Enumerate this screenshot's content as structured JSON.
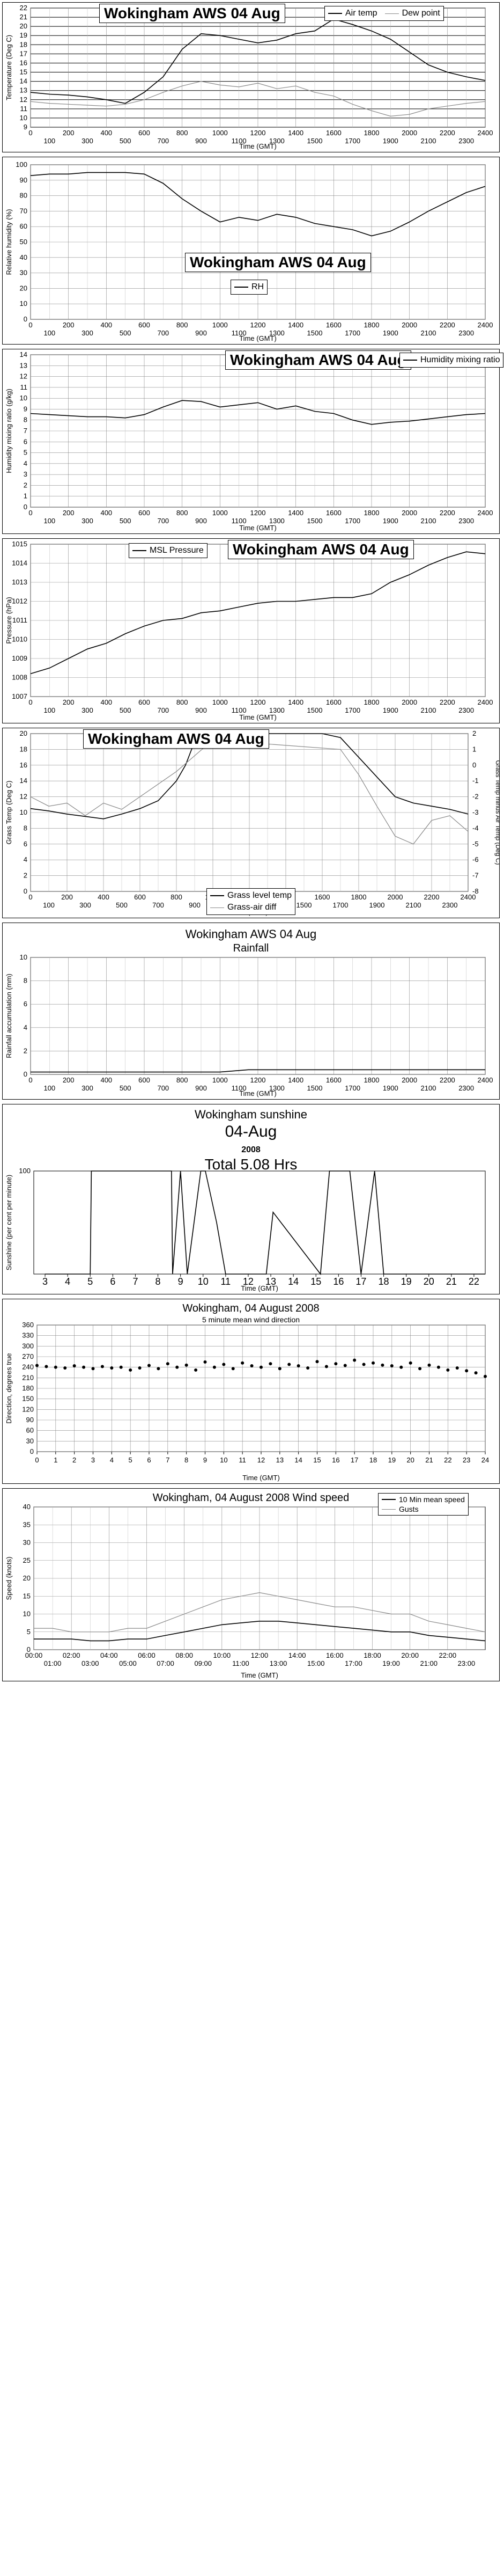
{
  "chart_data": [
    {
      "id": "temp",
      "type": "line",
      "title": "Wokingham AWS 04 Aug",
      "xlabel": "Time (GMT)",
      "ylabel": "Temperature (Deg C)",
      "xlim": [
        0,
        2400
      ],
      "ylim": [
        9,
        22
      ],
      "xticks_top": [
        0,
        200,
        400,
        600,
        800,
        1000,
        1200,
        1400,
        1600,
        1800,
        2000,
        2200,
        2400
      ],
      "xticks_bottom": [
        100,
        300,
        500,
        700,
        900,
        1100,
        1300,
        1500,
        1700,
        1900,
        2100,
        2300
      ],
      "yticks": [
        9,
        10,
        11,
        12,
        13,
        14,
        15,
        16,
        17,
        18,
        19,
        20,
        21,
        22
      ],
      "grid": true,
      "legend_position": "top-right",
      "series": [
        {
          "name": "Air temp",
          "x": [
            0,
            100,
            200,
            300,
            400,
            500,
            600,
            700,
            800,
            900,
            1000,
            1100,
            1200,
            1300,
            1400,
            1500,
            1600,
            1700,
            1800,
            1900,
            2000,
            2100,
            2200,
            2300,
            2400
          ],
          "values": [
            12.8,
            12.6,
            12.5,
            12.3,
            12.0,
            11.6,
            12.8,
            14.5,
            17.5,
            19.2,
            19.0,
            18.6,
            18.2,
            18.5,
            19.2,
            19.5,
            20.8,
            20.2,
            19.5,
            18.6,
            17.2,
            15.8,
            15.0,
            14.5,
            14.1
          ]
        },
        {
          "name": "Dew point",
          "x": [
            0,
            100,
            200,
            300,
            400,
            500,
            600,
            700,
            800,
            900,
            1000,
            1100,
            1200,
            1300,
            1400,
            1500,
            1600,
            1700,
            1800,
            1900,
            2000,
            2100,
            2200,
            2300,
            2400
          ],
          "values": [
            11.8,
            11.6,
            11.5,
            11.4,
            11.3,
            11.5,
            12.0,
            12.8,
            13.5,
            14.0,
            13.6,
            13.4,
            13.8,
            13.2,
            13.5,
            12.8,
            12.4,
            11.5,
            10.8,
            10.2,
            10.4,
            11.0,
            11.3,
            11.6,
            11.8
          ]
        }
      ]
    },
    {
      "id": "rh",
      "type": "line",
      "title": "Wokingham AWS 04 Aug",
      "xlabel": "Time (GMT)",
      "ylabel": "Relative humidity (%)",
      "xlim": [
        0,
        2400
      ],
      "ylim": [
        0,
        100
      ],
      "xticks_top": [
        0,
        200,
        400,
        600,
        800,
        1000,
        1200,
        1400,
        1600,
        1800,
        2000,
        2200,
        2400
      ],
      "xticks_bottom": [
        100,
        300,
        500,
        700,
        900,
        1100,
        1300,
        1500,
        1700,
        1900,
        2100,
        2300
      ],
      "yticks": [
        0,
        10,
        20,
        30,
        40,
        50,
        60,
        70,
        80,
        90,
        100
      ],
      "grid": true,
      "legend_position": "center",
      "series": [
        {
          "name": "RH",
          "x": [
            0,
            100,
            200,
            300,
            400,
            500,
            600,
            700,
            800,
            900,
            1000,
            1100,
            1200,
            1300,
            1400,
            1500,
            1600,
            1700,
            1800,
            1900,
            2000,
            2100,
            2200,
            2300,
            2400
          ],
          "values": [
            93,
            94,
            94,
            95,
            95,
            95,
            94,
            88,
            78,
            70,
            63,
            66,
            64,
            68,
            66,
            62,
            60,
            58,
            54,
            57,
            63,
            70,
            76,
            82,
            86
          ]
        }
      ]
    },
    {
      "id": "hmr",
      "type": "line",
      "title": "Wokingham AWS 04 Aug",
      "xlabel": "Time (GMT)",
      "ylabel": "Humidity mixing ratio (g/kg)",
      "xlim": [
        0,
        2400
      ],
      "ylim": [
        0,
        14
      ],
      "xticks_top": [
        0,
        200,
        400,
        600,
        800,
        1000,
        1200,
        1400,
        1600,
        1800,
        2000,
        2200,
        2400
      ],
      "xticks_bottom": [
        100,
        300,
        500,
        700,
        900,
        1100,
        1300,
        1500,
        1700,
        1900,
        2100,
        2300
      ],
      "yticks": [
        0,
        1,
        2,
        3,
        4,
        5,
        6,
        7,
        8,
        9,
        10,
        11,
        12,
        13,
        14
      ],
      "grid": true,
      "legend_position": "top-right",
      "series": [
        {
          "name": "Humidity mixing ratio",
          "x": [
            0,
            100,
            200,
            300,
            400,
            500,
            600,
            700,
            800,
            900,
            1000,
            1100,
            1200,
            1300,
            1400,
            1500,
            1600,
            1700,
            1800,
            1900,
            2000,
            2100,
            2200,
            2300,
            2400
          ],
          "values": [
            8.6,
            8.5,
            8.4,
            8.3,
            8.3,
            8.2,
            8.5,
            9.2,
            9.8,
            9.7,
            9.2,
            9.4,
            9.6,
            9.0,
            9.3,
            8.8,
            8.6,
            8.0,
            7.6,
            7.8,
            7.9,
            8.1,
            8.3,
            8.5,
            8.6
          ]
        }
      ]
    },
    {
      "id": "pressure",
      "type": "line",
      "title": "Wokingham AWS 04 Aug",
      "xlabel": "Time (GMT)",
      "ylabel": "Pressure (hPa)",
      "xlim": [
        0,
        2400
      ],
      "ylim": [
        1007,
        1015
      ],
      "xticks_top": [
        0,
        200,
        400,
        600,
        800,
        1000,
        1200,
        1400,
        1600,
        1800,
        2000,
        2200,
        2400
      ],
      "xticks_bottom": [
        100,
        300,
        500,
        700,
        900,
        1100,
        1300,
        1500,
        1700,
        1900,
        2100,
        2300
      ],
      "yticks": [
        1007,
        1008,
        1009,
        1010,
        1011,
        1012,
        1013,
        1014,
        1015
      ],
      "grid": true,
      "legend_position": "top-left",
      "series": [
        {
          "name": "MSL Pressure",
          "x": [
            0,
            100,
            200,
            300,
            400,
            500,
            600,
            700,
            800,
            900,
            1000,
            1100,
            1200,
            1300,
            1400,
            1500,
            1600,
            1700,
            1800,
            1900,
            2000,
            2100,
            2200,
            2300,
            2400
          ],
          "values": [
            1008.2,
            1008.5,
            1009.0,
            1009.5,
            1009.8,
            1010.3,
            1010.7,
            1011.0,
            1011.1,
            1011.4,
            1011.5,
            1011.7,
            1011.9,
            1012.0,
            1012.0,
            1012.1,
            1012.2,
            1012.2,
            1012.4,
            1013.0,
            1013.4,
            1013.9,
            1014.3,
            1014.6,
            1014.5
          ]
        }
      ]
    },
    {
      "id": "grass",
      "type": "line",
      "title": "Wokingham AWS 04 Aug",
      "xlabel": "Time (GMT)",
      "ylabel": "Grass Temp (Deg C)",
      "ylabel_right": "Grass Temp minus Air Temp (Deg C)",
      "xlim": [
        0,
        2400
      ],
      "ylim": [
        0,
        20
      ],
      "ylim_right": [
        -8,
        2
      ],
      "xticks_top": [
        0,
        200,
        400,
        600,
        800,
        1000,
        1200,
        1400,
        1600,
        1800,
        2000,
        2200,
        2400
      ],
      "xticks_bottom": [
        100,
        300,
        500,
        700,
        900,
        1100,
        1300,
        1500,
        1700,
        1900,
        2100,
        2300
      ],
      "yticks": [
        0,
        2,
        4,
        6,
        8,
        10,
        12,
        14,
        16,
        18,
        20
      ],
      "yticks_right": [
        -8,
        -7,
        -6,
        -5,
        -4,
        -3,
        -2,
        -1,
        0,
        1,
        2
      ],
      "grid": true,
      "legend_position": "bottom-right",
      "series": [
        {
          "name": "Grass level temp",
          "x": [
            0,
            100,
            200,
            300,
            400,
            500,
            600,
            700,
            800,
            850,
            900,
            1000,
            1200,
            1400,
            1600,
            1700,
            1800,
            1900,
            2000,
            2100,
            2200,
            2300,
            2400
          ],
          "values": [
            10.5,
            10.2,
            9.8,
            9.5,
            9.2,
            9.8,
            10.5,
            11.5,
            14.0,
            16.0,
            19.0,
            20,
            20,
            20,
            20,
            19.5,
            17.0,
            14.5,
            12.0,
            11.2,
            10.8,
            10.4,
            9.8
          ]
        },
        {
          "name": "Grass-air diff",
          "axis": "right",
          "x": [
            0,
            100,
            200,
            300,
            400,
            500,
            600,
            700,
            800,
            900,
            1000,
            1700,
            1800,
            1900,
            2000,
            2100,
            2200,
            2300,
            2400
          ],
          "values": [
            -2.0,
            -2.6,
            -2.4,
            -3.2,
            -2.4,
            -2.8,
            -2.0,
            -1.2,
            -0.4,
            0.6,
            1.6,
            1.0,
            -0.6,
            -2.6,
            -4.5,
            -5.0,
            -3.5,
            -3.2,
            -4.2
          ]
        }
      ]
    },
    {
      "id": "rain",
      "type": "line",
      "title": "Wokingham AWS 04 Aug",
      "subtitle": "Rainfall",
      "xlabel": "Time (GMT)",
      "ylabel": "Rainfall accumulation (mm)",
      "xlim": [
        0,
        2400
      ],
      "ylim": [
        0,
        10
      ],
      "xticks_top": [
        0,
        200,
        400,
        600,
        800,
        1000,
        1200,
        1400,
        1600,
        1800,
        2000,
        2200,
        2400
      ],
      "xticks_bottom": [
        100,
        300,
        500,
        700,
        900,
        1100,
        1300,
        1500,
        1700,
        1900,
        2100,
        2300
      ],
      "yticks": [
        0,
        2,
        4,
        6,
        8,
        10
      ],
      "grid": true,
      "series": [
        {
          "name": "Rainfall",
          "x": [
            0,
            1000,
            1150,
            2400
          ],
          "values": [
            0.2,
            0.2,
            0.4,
            0.4
          ]
        }
      ]
    },
    {
      "id": "sun",
      "type": "line",
      "title": "Wokingham sunshine",
      "date_label": "04-Aug",
      "year_label": "2008",
      "total_label": "Total 5.08 Hrs",
      "xlabel": "Time (GMT)",
      "ylabel": "Sunshine (per cent per minute)",
      "xlim": [
        2.5,
        22.5
      ],
      "ylim": [
        0,
        100
      ],
      "xticks": [
        3,
        4,
        5,
        6,
        7,
        8,
        9,
        10,
        11,
        12,
        13,
        14,
        15,
        16,
        17,
        18,
        19,
        20,
        21,
        22
      ],
      "yticks": [
        100
      ],
      "grid": false,
      "series": [
        {
          "name": "Sunshine",
          "x": [
            3,
            5.0,
            5.05,
            8.6,
            8.65,
            9.0,
            9.3,
            9.9,
            10.1,
            10.6,
            11.0,
            12.8,
            13.1,
            15.2,
            15.6,
            16.5,
            17.0,
            17.6,
            18.0,
            22.5
          ],
          "values": [
            0,
            0,
            100,
            100,
            0,
            100,
            0,
            100,
            100,
            50,
            0,
            0,
            60,
            0,
            100,
            100,
            0,
            100,
            0,
            0
          ]
        }
      ]
    },
    {
      "id": "winddir",
      "type": "scatter",
      "title": "Wokingham, 04 August 2008",
      "subtitle": "5 minute mean wind direction",
      "xlabel": "Time (GMT)",
      "ylabel": "Direction, degrees true",
      "xlim": [
        0,
        24
      ],
      "ylim": [
        0,
        360
      ],
      "xticks": [
        0,
        1,
        2,
        3,
        4,
        5,
        6,
        7,
        8,
        9,
        10,
        11,
        12,
        13,
        14,
        15,
        16,
        17,
        18,
        19,
        20,
        21,
        22,
        23,
        24
      ],
      "yticks": [
        0,
        30,
        60,
        90,
        120,
        150,
        180,
        210,
        240,
        270,
        300,
        330,
        360
      ],
      "grid": true,
      "series": [
        {
          "name": "5 minute mean wind direction",
          "x": [
            0,
            0.5,
            1,
            1.5,
            2,
            2.5,
            3,
            3.5,
            4,
            4.5,
            5,
            5.5,
            6,
            6.5,
            7,
            7.5,
            8,
            8.5,
            9,
            9.5,
            10,
            10.5,
            11,
            11.5,
            12,
            12.5,
            13,
            13.5,
            14,
            14.5,
            15,
            15.5,
            16,
            16.5,
            17,
            17.5,
            18,
            18.5,
            19,
            19.5,
            20,
            20.5,
            21,
            21.5,
            22,
            22.5,
            23,
            23.5,
            24
          ],
          "values": [
            245,
            242,
            240,
            238,
            244,
            240,
            236,
            242,
            238,
            240,
            232,
            238,
            245,
            236,
            250,
            240,
            246,
            232,
            255,
            240,
            248,
            236,
            252,
            244,
            240,
            250,
            236,
            248,
            244,
            238,
            256,
            242,
            250,
            245,
            260,
            248,
            252,
            246,
            244,
            240,
            252,
            236,
            246,
            240,
            232,
            238,
            230,
            224,
            214
          ]
        }
      ]
    },
    {
      "id": "windspeed",
      "type": "line",
      "title": "Wokingham,  04 August 2008  Wind speed",
      "xlabel": "Time (GMT)",
      "ylabel": "Speed (knots)",
      "xlim": [
        0,
        24
      ],
      "ylim": [
        0,
        40
      ],
      "xticks_top": [
        "00:00",
        "02:00",
        "04:00",
        "06:00",
        "08:00",
        "10:00",
        "12:00",
        "14:00",
        "16:00",
        "18:00",
        "20:00",
        "22:00"
      ],
      "xticks_bottom": [
        "01:00",
        "03:00",
        "05:00",
        "07:00",
        "09:00",
        "11:00",
        "13:00",
        "15:00",
        "17:00",
        "19:00",
        "21:00",
        "23:00"
      ],
      "yticks": [
        0,
        5,
        10,
        15,
        20,
        25,
        30,
        35,
        40
      ],
      "grid": true,
      "legend_position": "top-right",
      "series": [
        {
          "name": "10 Min mean speed",
          "x": [
            0,
            1,
            2,
            3,
            4,
            5,
            6,
            7,
            8,
            9,
            10,
            11,
            12,
            13,
            14,
            15,
            16,
            17,
            18,
            19,
            20,
            21,
            22,
            23,
            24
          ],
          "values": [
            3,
            3,
            3,
            2.5,
            2.5,
            3,
            3,
            4,
            5,
            6,
            7,
            7.5,
            8,
            8,
            7.5,
            7,
            6.5,
            6,
            5.5,
            5,
            5,
            4,
            3.5,
            3,
            2.5
          ]
        },
        {
          "name": "Gusts",
          "x": [
            0,
            1,
            2,
            3,
            4,
            5,
            6,
            7,
            8,
            9,
            10,
            11,
            12,
            13,
            14,
            15,
            16,
            17,
            18,
            19,
            20,
            21,
            22,
            23,
            24
          ],
          "values": [
            6,
            6,
            5,
            5,
            5,
            6,
            6,
            8,
            10,
            12,
            14,
            15,
            16,
            15,
            14,
            13,
            12,
            12,
            11,
            10,
            10,
            8,
            7,
            6,
            5
          ]
        }
      ]
    }
  ]
}
